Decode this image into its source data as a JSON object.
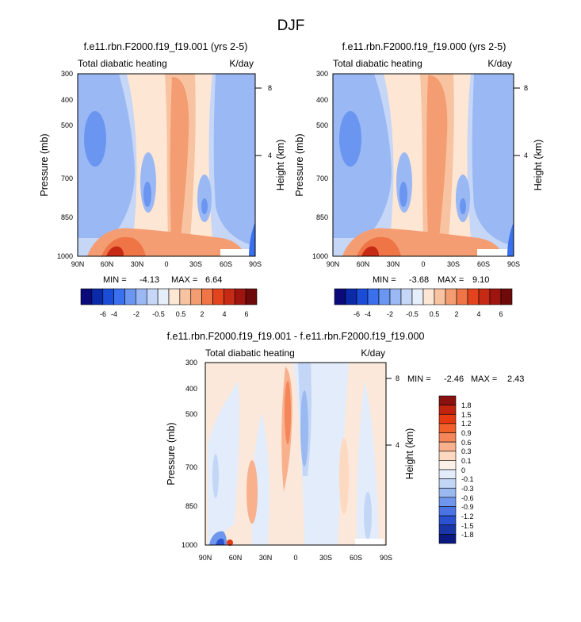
{
  "figure": {
    "title": "DJF"
  },
  "chart_data": [
    {
      "type": "heatmap",
      "title": "f.e11.rbn.F2000.f19_f19.001 (yrs 2-5)",
      "left_label": "Total diabatic heating",
      "right_label": "K/day",
      "ylabel": "Pressure (mb)",
      "ylabel_right": "Height (km)",
      "x_ticks": [
        "90N",
        "60N",
        "30N",
        "0",
        "30S",
        "60S",
        "90S"
      ],
      "y_ticks": [
        "300",
        "400",
        "500",
        "700",
        "850",
        "1000"
      ],
      "y_right_ticks": [
        "8",
        "4"
      ],
      "min_label": "MIN = ",
      "min": "-4.13",
      "max_label": "MAX = ",
      "max": "6.64",
      "colorbar_labels": [
        "-6",
        "-4",
        "-2",
        "-0.5",
        "0.5",
        "2",
        "4",
        "6"
      ]
    },
    {
      "type": "heatmap",
      "title": "f.e11.rbn.F2000.f19_f19.000 (yrs 2-5)",
      "left_label": "Total diabatic heating",
      "right_label": "K/day",
      "ylabel": "Pressure (mb)",
      "ylabel_right": "Height (km)",
      "x_ticks": [
        "90N",
        "60N",
        "30N",
        "0",
        "30S",
        "60S",
        "90S"
      ],
      "y_ticks": [
        "300",
        "400",
        "500",
        "700",
        "850",
        "1000"
      ],
      "y_right_ticks": [
        "8",
        "4"
      ],
      "min_label": "MIN = ",
      "min": "-3.68",
      "max_label": "MAX = ",
      "max": "9.10",
      "colorbar_labels": [
        "-6",
        "-4",
        "-2",
        "-0.5",
        "0.5",
        "2",
        "4",
        "6"
      ]
    },
    {
      "type": "heatmap",
      "title": "f.e11.rbn.F2000.f19_f19.001 - f.e11.rbn.F2000.f19_f19.000",
      "left_label": "Total diabatic heating",
      "right_label": "K/day",
      "ylabel": "Pressure (mb)",
      "ylabel_right": "Height (km)",
      "x_ticks": [
        "90N",
        "60N",
        "30N",
        "0",
        "30S",
        "60S",
        "90S"
      ],
      "y_ticks": [
        "300",
        "400",
        "500",
        "700",
        "850",
        "1000"
      ],
      "y_right_ticks": [
        "8",
        "4"
      ],
      "min_label": "MIN = ",
      "min": "-2.46",
      "max_label": "MAX = ",
      "max": "2.43",
      "colorbar_labels": [
        "1.8",
        "1.5",
        "1.2",
        "0.9",
        "0.6",
        "0.3",
        "0.1",
        "0",
        "-0.1",
        "-0.3",
        "-0.6",
        "-0.9",
        "-1.2",
        "-1.5",
        "-1.8"
      ]
    }
  ],
  "colors": {
    "colorbar_full": [
      "#0a0a7a",
      "#0b2aa8",
      "#1a4cd8",
      "#3a70ee",
      "#6a95f0",
      "#9ab8f3",
      "#c5d6f7",
      "#e6eefa",
      "#fde6d4",
      "#f8c3a1",
      "#f59d72",
      "#ef7446",
      "#e4441d",
      "#c72a14",
      "#9e1510",
      "#6e0a0a"
    ],
    "colorbar_diff": [
      "#8b1111",
      "#c0240f",
      "#e63a12",
      "#f1602a",
      "#f4865a",
      "#f8b08d",
      "#fcd9c0",
      "#fbf1e8",
      "#e3ecfb",
      "#c3d6f6",
      "#9bb9f1",
      "#6f96ec",
      "#4a74e4",
      "#2a51cf",
      "#1a35a8",
      "#0a1a80"
    ],
    "neg_deep": "#3a70ee",
    "neg_mid": "#6a95f0",
    "neg_light": "#9ab8f3",
    "neg_pale": "#c5d6f7",
    "neutral_neg": "#e6eefa",
    "neutral_pos": "#fbe8da",
    "pos_pale": "#f8c3a1",
    "pos_mid": "#f59d72",
    "pos_strong": "#ef7446",
    "pos_deep": "#c72a14",
    "diff_pos": "#f8c6a6",
    "diff_neg": "#b7cdf5",
    "diff_neg_deep": "#7fa2ee"
  }
}
